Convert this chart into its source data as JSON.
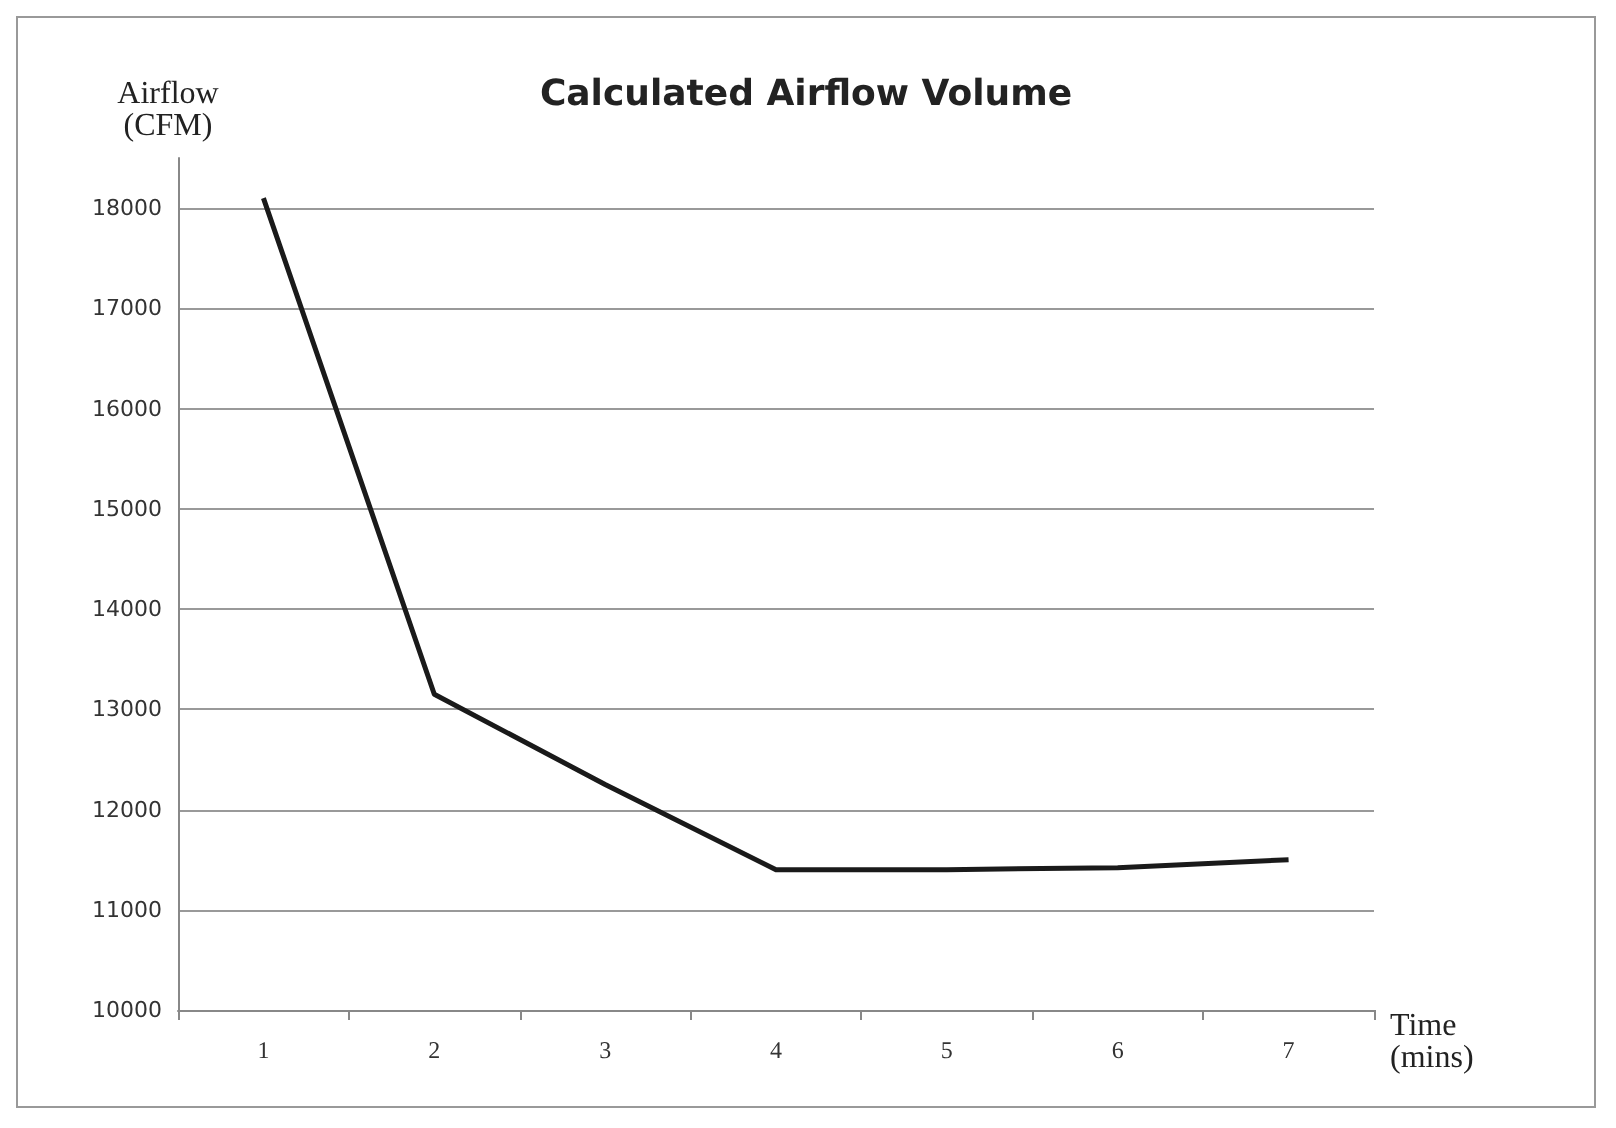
{
  "chart_data": {
    "type": "line",
    "title": "Calculated Airflow Volume",
    "ylabel": "Airflow\n(CFM)",
    "xlabel": "Time\n(mins)",
    "categories": [
      "1",
      "2",
      "3",
      "4",
      "5",
      "6",
      "7"
    ],
    "series": [
      {
        "color": "#1a1a1a",
        "values": [
          18100,
          13150,
          12250,
          11400,
          11400,
          11420,
          11500
        ]
      }
    ],
    "ylim": [
      10000,
      18500
    ],
    "yticks": [
      10000,
      11000,
      12000,
      13000,
      14000,
      15000,
      16000,
      17000,
      18000
    ],
    "grid": "y",
    "marker": "none",
    "line_style": "solid"
  }
}
